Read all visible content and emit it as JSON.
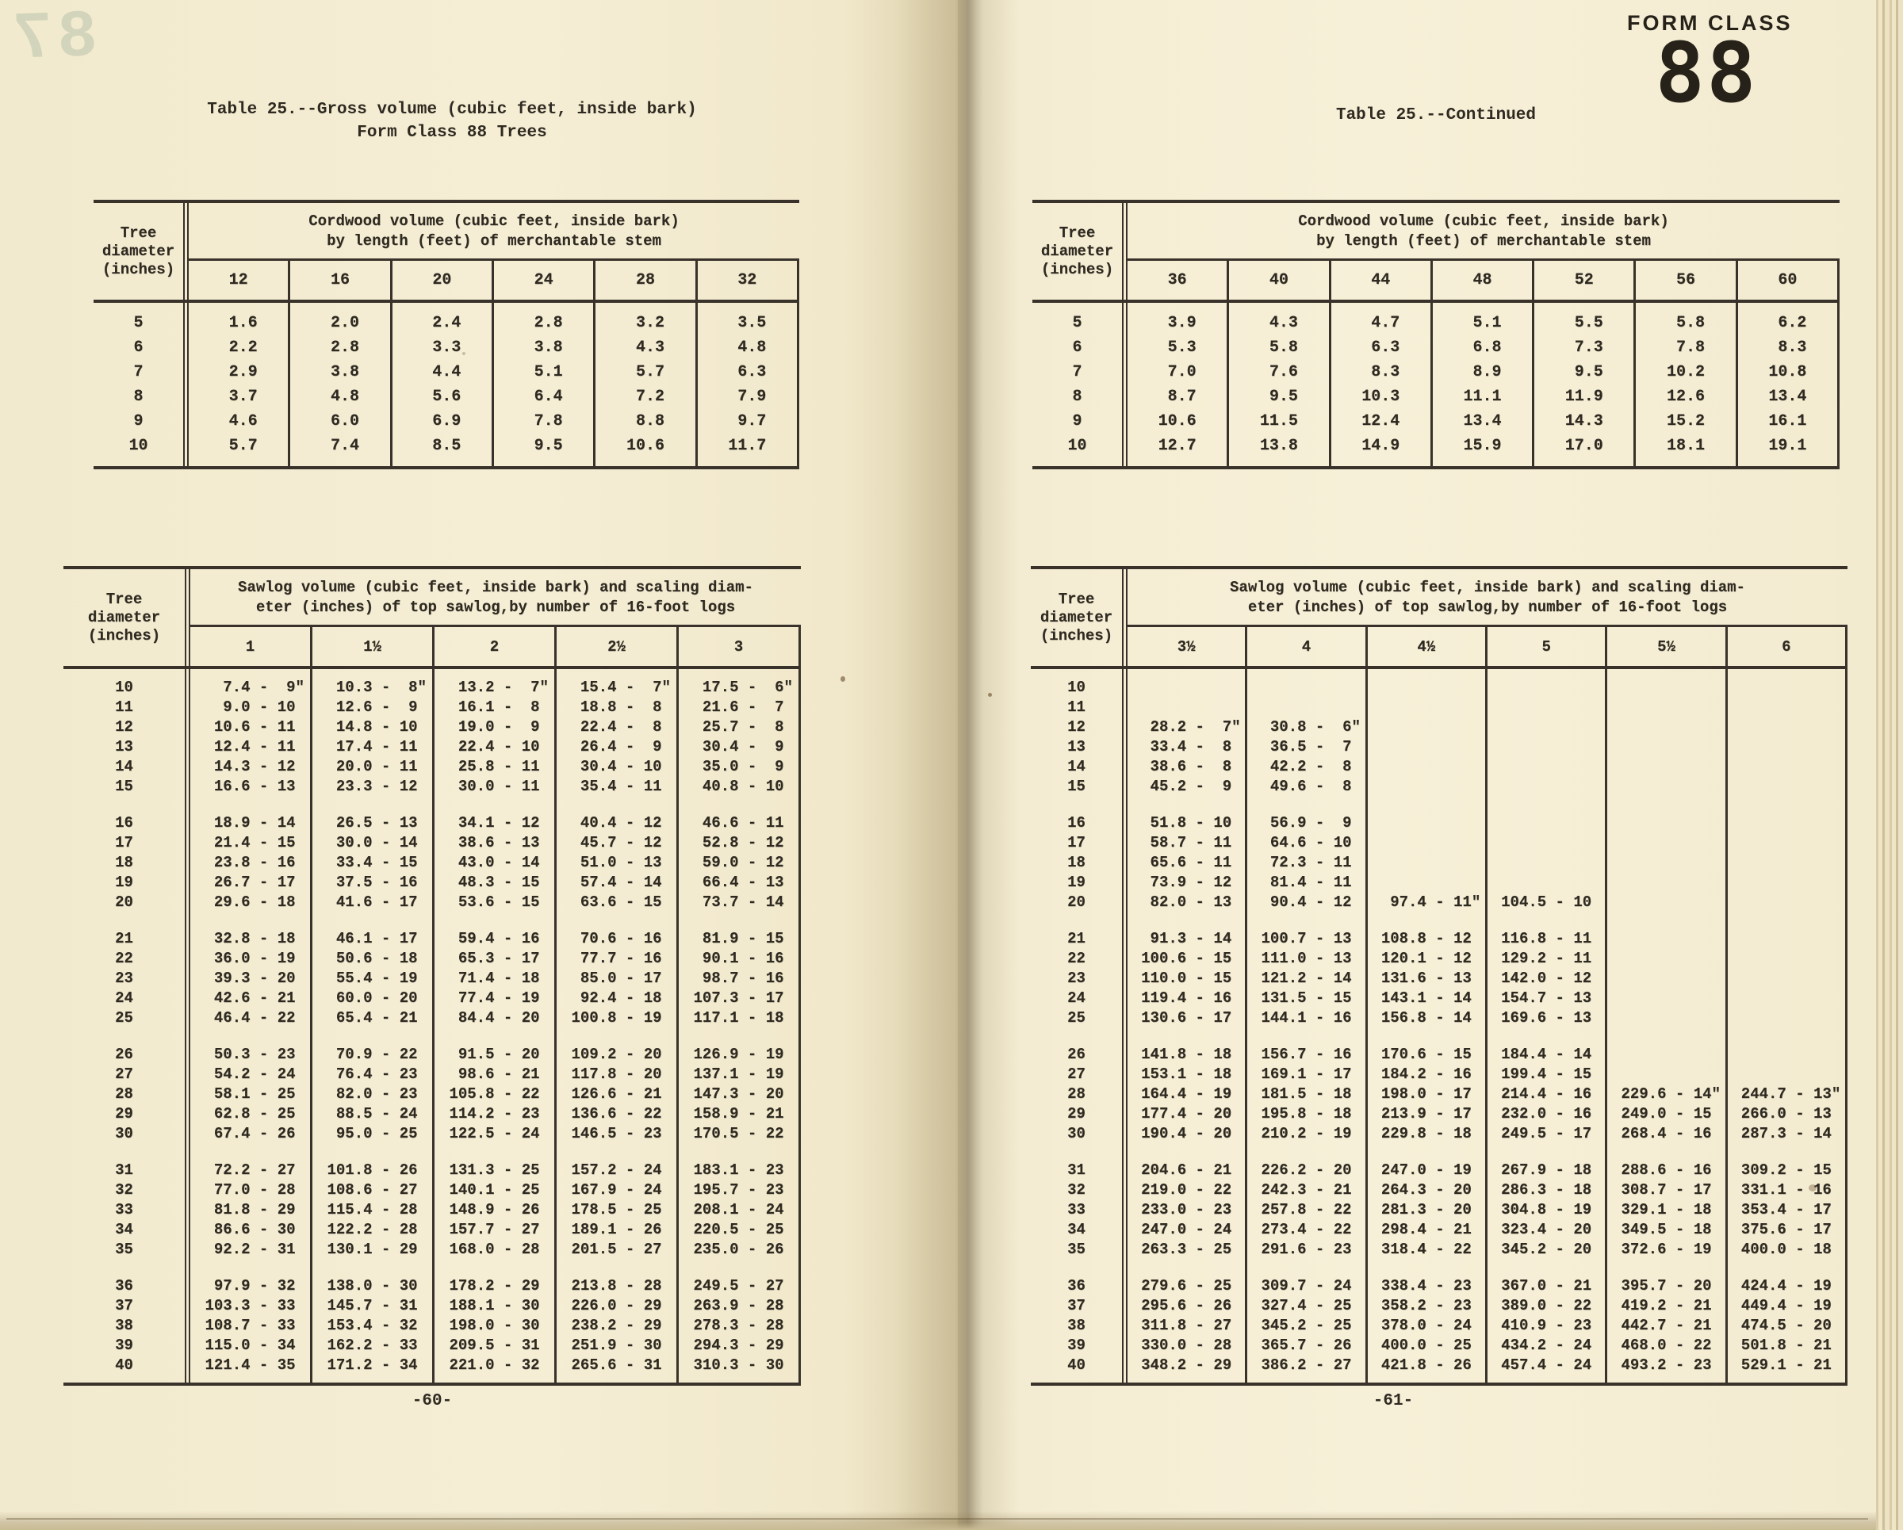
{
  "artifacts": {
    "bleedthrough_number": "87"
  },
  "header": {
    "form_class_label": "FORM CLASS",
    "form_class_number": "88"
  },
  "left_page": {
    "title_line1": "Table 25.--Gross volume (cubic feet, inside bark)",
    "title_line2": "Form Class 88 Trees",
    "page_number": "-60-",
    "cordwood_table": {
      "stub_lines": [
        "Tree",
        "diameter",
        "(inches)"
      ],
      "span_lines": [
        "Cordwood volume (cubic feet, inside bark)",
        "by length (feet) of merchantable stem"
      ],
      "columns": [
        "12",
        "16",
        "20",
        "24",
        "28",
        "32"
      ],
      "row_groups": [
        [
          {
            "d": "5",
            "c": [
              "1.6",
              "2.0",
              "2.4",
              "2.8",
              "3.2",
              "3.5"
            ]
          },
          {
            "d": "6",
            "c": [
              "2.2",
              "2.8",
              "3.3",
              "3.8",
              "4.3",
              "4.8"
            ]
          },
          {
            "d": "7",
            "c": [
              "2.9",
              "3.8",
              "4.4",
              "5.1",
              "5.7",
              "6.3"
            ]
          },
          {
            "d": "8",
            "c": [
              "3.7",
              "4.8",
              "5.6",
              "6.4",
              "7.2",
              "7.9"
            ]
          },
          {
            "d": "9",
            "c": [
              "4.6",
              "6.0",
              "6.9",
              "7.8",
              "8.8",
              "9.7"
            ]
          },
          {
            "d": "10",
            "c": [
              "5.7",
              "7.4",
              "8.5",
              "9.5",
              "10.6",
              "11.7"
            ]
          }
        ]
      ]
    },
    "sawlog_table": {
      "stub_lines": [
        "Tree",
        "diameter",
        "(inches)"
      ],
      "span_lines": [
        "Sawlog volume (cubic feet, inside bark) and scaling diam-",
        "eter (inches) of top sawlog,by number of 16-foot logs"
      ],
      "columns": [
        "1",
        "1½",
        "2",
        "2½",
        "3"
      ],
      "row_groups": [
        [
          {
            "d": "10",
            "c": [
              "7.4 - 9\"",
              "10.3 - 8\"",
              "13.2 - 7\"",
              "15.4 - 7\"",
              "17.5 - 6\""
            ]
          },
          {
            "d": "11",
            "c": [
              "9.0 - 10",
              "12.6 - 9",
              "16.1 - 8",
              "18.8 - 8",
              "21.6 - 7"
            ]
          },
          {
            "d": "12",
            "c": [
              "10.6 - 11",
              "14.8 - 10",
              "19.0 - 9",
              "22.4 - 8",
              "25.7 - 8"
            ]
          },
          {
            "d": "13",
            "c": [
              "12.4 - 11",
              "17.4 - 11",
              "22.4 - 10",
              "26.4 - 9",
              "30.4 - 9"
            ]
          },
          {
            "d": "14",
            "c": [
              "14.3 - 12",
              "20.0 - 11",
              "25.8 - 11",
              "30.4 - 10",
              "35.0 - 9"
            ]
          },
          {
            "d": "15",
            "c": [
              "16.6 - 13",
              "23.3 - 12",
              "30.0 - 11",
              "35.4 - 11",
              "40.8 - 10"
            ]
          }
        ],
        [
          {
            "d": "16",
            "c": [
              "18.9 - 14",
              "26.5 - 13",
              "34.1 - 12",
              "40.4 - 12",
              "46.6 - 11"
            ]
          },
          {
            "d": "17",
            "c": [
              "21.4 - 15",
              "30.0 - 14",
              "38.6 - 13",
              "45.7 - 12",
              "52.8 - 12"
            ]
          },
          {
            "d": "18",
            "c": [
              "23.8 - 16",
              "33.4 - 15",
              "43.0 - 14",
              "51.0 - 13",
              "59.0 - 12"
            ]
          },
          {
            "d": "19",
            "c": [
              "26.7 - 17",
              "37.5 - 16",
              "48.3 - 15",
              "57.4 - 14",
              "66.4 - 13"
            ]
          },
          {
            "d": "20",
            "c": [
              "29.6 - 18",
              "41.6 - 17",
              "53.6 - 15",
              "63.6 - 15",
              "73.7 - 14"
            ]
          }
        ],
        [
          {
            "d": "21",
            "c": [
              "32.8 - 18",
              "46.1 - 17",
              "59.4 - 16",
              "70.6 - 16",
              "81.9 - 15"
            ]
          },
          {
            "d": "22",
            "c": [
              "36.0 - 19",
              "50.6 - 18",
              "65.3 - 17",
              "77.7 - 16",
              "90.1 - 16"
            ]
          },
          {
            "d": "23",
            "c": [
              "39.3 - 20",
              "55.4 - 19",
              "71.4 - 18",
              "85.0 - 17",
              "98.7 - 16"
            ]
          },
          {
            "d": "24",
            "c": [
              "42.6 - 21",
              "60.0 - 20",
              "77.4 - 19",
              "92.4 - 18",
              "107.3 - 17"
            ]
          },
          {
            "d": "25",
            "c": [
              "46.4 - 22",
              "65.4 - 21",
              "84.4 - 20",
              "100.8 - 19",
              "117.1 - 18"
            ]
          }
        ],
        [
          {
            "d": "26",
            "c": [
              "50.3 - 23",
              "70.9 - 22",
              "91.5 - 20",
              "109.2 - 20",
              "126.9 - 19"
            ]
          },
          {
            "d": "27",
            "c": [
              "54.2 - 24",
              "76.4 - 23",
              "98.6 - 21",
              "117.8 - 20",
              "137.1 - 19"
            ]
          },
          {
            "d": "28",
            "c": [
              "58.1 - 25",
              "82.0 - 23",
              "105.8 - 22",
              "126.6 - 21",
              "147.3 - 20"
            ]
          },
          {
            "d": "29",
            "c": [
              "62.8 - 25",
              "88.5 - 24",
              "114.2 - 23",
              "136.6 - 22",
              "158.9 - 21"
            ]
          },
          {
            "d": "30",
            "c": [
              "67.4 - 26",
              "95.0 - 25",
              "122.5 - 24",
              "146.5 - 23",
              "170.5 - 22"
            ]
          }
        ],
        [
          {
            "d": "31",
            "c": [
              "72.2 - 27",
              "101.8 - 26",
              "131.3 - 25",
              "157.2 - 24",
              "183.1 - 23"
            ]
          },
          {
            "d": "32",
            "c": [
              "77.0 - 28",
              "108.6 - 27",
              "140.1 - 25",
              "167.9 - 24",
              "195.7 - 23"
            ]
          },
          {
            "d": "33",
            "c": [
              "81.8 - 29",
              "115.4 - 28",
              "148.9 - 26",
              "178.5 - 25",
              "208.1 - 24"
            ]
          },
          {
            "d": "34",
            "c": [
              "86.6 - 30",
              "122.2 - 28",
              "157.7 - 27",
              "189.1 - 26",
              "220.5 - 25"
            ]
          },
          {
            "d": "35",
            "c": [
              "92.2 - 31",
              "130.1 - 29",
              "168.0 - 28",
              "201.5 - 27",
              "235.0 - 26"
            ]
          }
        ],
        [
          {
            "d": "36",
            "c": [
              "97.9 - 32",
              "138.0 - 30",
              "178.2 - 29",
              "213.8 - 28",
              "249.5 - 27"
            ]
          },
          {
            "d": "37",
            "c": [
              "103.3 - 33",
              "145.7 - 31",
              "188.1 - 30",
              "226.0 - 29",
              "263.9 - 28"
            ]
          },
          {
            "d": "38",
            "c": [
              "108.7 - 33",
              "153.4 - 32",
              "198.0 - 30",
              "238.2 - 29",
              "278.3 - 28"
            ]
          },
          {
            "d": "39",
            "c": [
              "115.0 - 34",
              "162.2 - 33",
              "209.5 - 31",
              "251.9 - 30",
              "294.3 - 29"
            ]
          },
          {
            "d": "40",
            "c": [
              "121.4 - 35",
              "171.2 - 34",
              "221.0 - 32",
              "265.6 - 31",
              "310.3 - 30"
            ]
          }
        ]
      ]
    }
  },
  "right_page": {
    "title": "Table 25.--Continued",
    "page_number": "-61-",
    "cordwood_table": {
      "stub_lines": [
        "Tree",
        "diameter",
        "(inches)"
      ],
      "span_lines": [
        "Cordwood volume (cubic feet, inside bark)",
        "by length (feet) of merchantable stem"
      ],
      "columns": [
        "36",
        "40",
        "44",
        "48",
        "52",
        "56",
        "60"
      ],
      "row_groups": [
        [
          {
            "d": "5",
            "c": [
              "3.9",
              "4.3",
              "4.7",
              "5.1",
              "5.5",
              "5.8",
              "6.2"
            ]
          },
          {
            "d": "6",
            "c": [
              "5.3",
              "5.8",
              "6.3",
              "6.8",
              "7.3",
              "7.8",
              "8.3"
            ]
          },
          {
            "d": "7",
            "c": [
              "7.0",
              "7.6",
              "8.3",
              "8.9",
              "9.5",
              "10.2",
              "10.8"
            ]
          },
          {
            "d": "8",
            "c": [
              "8.7",
              "9.5",
              "10.3",
              "11.1",
              "11.9",
              "12.6",
              "13.4"
            ]
          },
          {
            "d": "9",
            "c": [
              "10.6",
              "11.5",
              "12.4",
              "13.4",
              "14.3",
              "15.2",
              "16.1"
            ]
          },
          {
            "d": "10",
            "c": [
              "12.7",
              "13.8",
              "14.9",
              "15.9",
              "17.0",
              "18.1",
              "19.1"
            ]
          }
        ]
      ]
    },
    "sawlog_table": {
      "stub_lines": [
        "Tree",
        "diameter",
        "(inches)"
      ],
      "span_lines": [
        "Sawlog volume (cubic feet, inside bark) and scaling diam-",
        "eter (inches) of top sawlog,by number of 16-foot logs"
      ],
      "columns": [
        "3½",
        "4",
        "4½",
        "5",
        "5½",
        "6"
      ],
      "row_groups": [
        [
          {
            "d": "10",
            "c": [
              "",
              "",
              "",
              "",
              "",
              ""
            ]
          },
          {
            "d": "11",
            "c": [
              "",
              "",
              "",
              "",
              "",
              ""
            ]
          },
          {
            "d": "12",
            "c": [
              "28.2 - 7\"",
              "30.8 - 6\"",
              "",
              "",
              "",
              ""
            ]
          },
          {
            "d": "13",
            "c": [
              "33.4 - 8",
              "36.5 - 7",
              "",
              "",
              "",
              ""
            ]
          },
          {
            "d": "14",
            "c": [
              "38.6 - 8",
              "42.2 - 8",
              "",
              "",
              "",
              ""
            ]
          },
          {
            "d": "15",
            "c": [
              "45.2 - 9",
              "49.6 - 8",
              "",
              "",
              "",
              ""
            ]
          }
        ],
        [
          {
            "d": "16",
            "c": [
              "51.8 - 10",
              "56.9 - 9",
              "",
              "",
              "",
              ""
            ]
          },
          {
            "d": "17",
            "c": [
              "58.7 - 11",
              "64.6 - 10",
              "",
              "",
              "",
              ""
            ]
          },
          {
            "d": "18",
            "c": [
              "65.6 - 11",
              "72.3 - 11",
              "",
              "",
              "",
              ""
            ]
          },
          {
            "d": "19",
            "c": [
              "73.9 - 12",
              "81.4 - 11",
              "",
              "",
              "",
              ""
            ]
          },
          {
            "d": "20",
            "c": [
              "82.0 - 13",
              "90.4 - 12",
              "97.4 - 11\"",
              "104.5 - 10",
              "",
              ""
            ]
          }
        ],
        [
          {
            "d": "21",
            "c": [
              "91.3 - 14",
              "100.7 - 13",
              "108.8 - 12",
              "116.8 - 11",
              "",
              ""
            ]
          },
          {
            "d": "22",
            "c": [
              "100.6 - 15",
              "111.0 - 13",
              "120.1 - 12",
              "129.2 - 11",
              "",
              ""
            ]
          },
          {
            "d": "23",
            "c": [
              "110.0 - 15",
              "121.2 - 14",
              "131.6 - 13",
              "142.0 - 12",
              "",
              ""
            ]
          },
          {
            "d": "24",
            "c": [
              "119.4 - 16",
              "131.5 - 15",
              "143.1 - 14",
              "154.7 - 13",
              "",
              ""
            ]
          },
          {
            "d": "25",
            "c": [
              "130.6 - 17",
              "144.1 - 16",
              "156.8 - 14",
              "169.6 - 13",
              "",
              ""
            ]
          }
        ],
        [
          {
            "d": "26",
            "c": [
              "141.8 - 18",
              "156.7 - 16",
              "170.6 - 15",
              "184.4 - 14",
              "",
              ""
            ]
          },
          {
            "d": "27",
            "c": [
              "153.1 - 18",
              "169.1 - 17",
              "184.2 - 16",
              "199.4 - 15",
              "",
              ""
            ]
          },
          {
            "d": "28",
            "c": [
              "164.4 - 19",
              "181.5 - 18",
              "198.0 - 17",
              "214.4 - 16",
              "229.6 - 14\"",
              "244.7 - 13\""
            ]
          },
          {
            "d": "29",
            "c": [
              "177.4 - 20",
              "195.8 - 18",
              "213.9 - 17",
              "232.0 - 16",
              "249.0 - 15",
              "266.0 - 13"
            ]
          },
          {
            "d": "30",
            "c": [
              "190.4 - 20",
              "210.2 - 19",
              "229.8 - 18",
              "249.5 - 17",
              "268.4 - 16",
              "287.3 - 14"
            ]
          }
        ],
        [
          {
            "d": "31",
            "c": [
              "204.6 - 21",
              "226.2 - 20",
              "247.0 - 19",
              "267.9 - 18",
              "288.6 - 16",
              "309.2 - 15"
            ]
          },
          {
            "d": "32",
            "c": [
              "219.0 - 22",
              "242.3 - 21",
              "264.3 - 20",
              "286.3 - 18",
              "308.7 - 17",
              "331.1 - 16"
            ]
          },
          {
            "d": "33",
            "c": [
              "233.0 - 23",
              "257.8 - 22",
              "281.3 - 20",
              "304.8 - 19",
              "329.1 - 18",
              "353.4 - 17"
            ]
          },
          {
            "d": "34",
            "c": [
              "247.0 - 24",
              "273.4 - 22",
              "298.4 - 21",
              "323.4 - 20",
              "349.5 - 18",
              "375.6 - 17"
            ]
          },
          {
            "d": "35",
            "c": [
              "263.3 - 25",
              "291.6 - 23",
              "318.4 - 22",
              "345.2 - 20",
              "372.6 - 19",
              "400.0 - 18"
            ]
          }
        ],
        [
          {
            "d": "36",
            "c": [
              "279.6 - 25",
              "309.7 - 24",
              "338.4 - 23",
              "367.0 - 21",
              "395.7 - 20",
              "424.4 - 19"
            ]
          },
          {
            "d": "37",
            "c": [
              "295.6 - 26",
              "327.4 - 25",
              "358.2 - 23",
              "389.0 - 22",
              "419.2 - 21",
              "449.4 - 19"
            ]
          },
          {
            "d": "38",
            "c": [
              "311.8 - 27",
              "345.2 - 25",
              "378.0 - 24",
              "410.9 - 23",
              "442.7 - 21",
              "474.5 - 20"
            ]
          },
          {
            "d": "39",
            "c": [
              "330.0 - 28",
              "365.7 - 26",
              "400.0 - 25",
              "434.2 - 24",
              "468.0 - 22",
              "501.8 - 21"
            ]
          },
          {
            "d": "40",
            "c": [
              "348.2 - 29",
              "386.2 - 27",
              "421.8 - 26",
              "457.4 - 24",
              "493.2 - 23",
              "529.1 - 21"
            ]
          }
        ]
      ]
    }
  }
}
